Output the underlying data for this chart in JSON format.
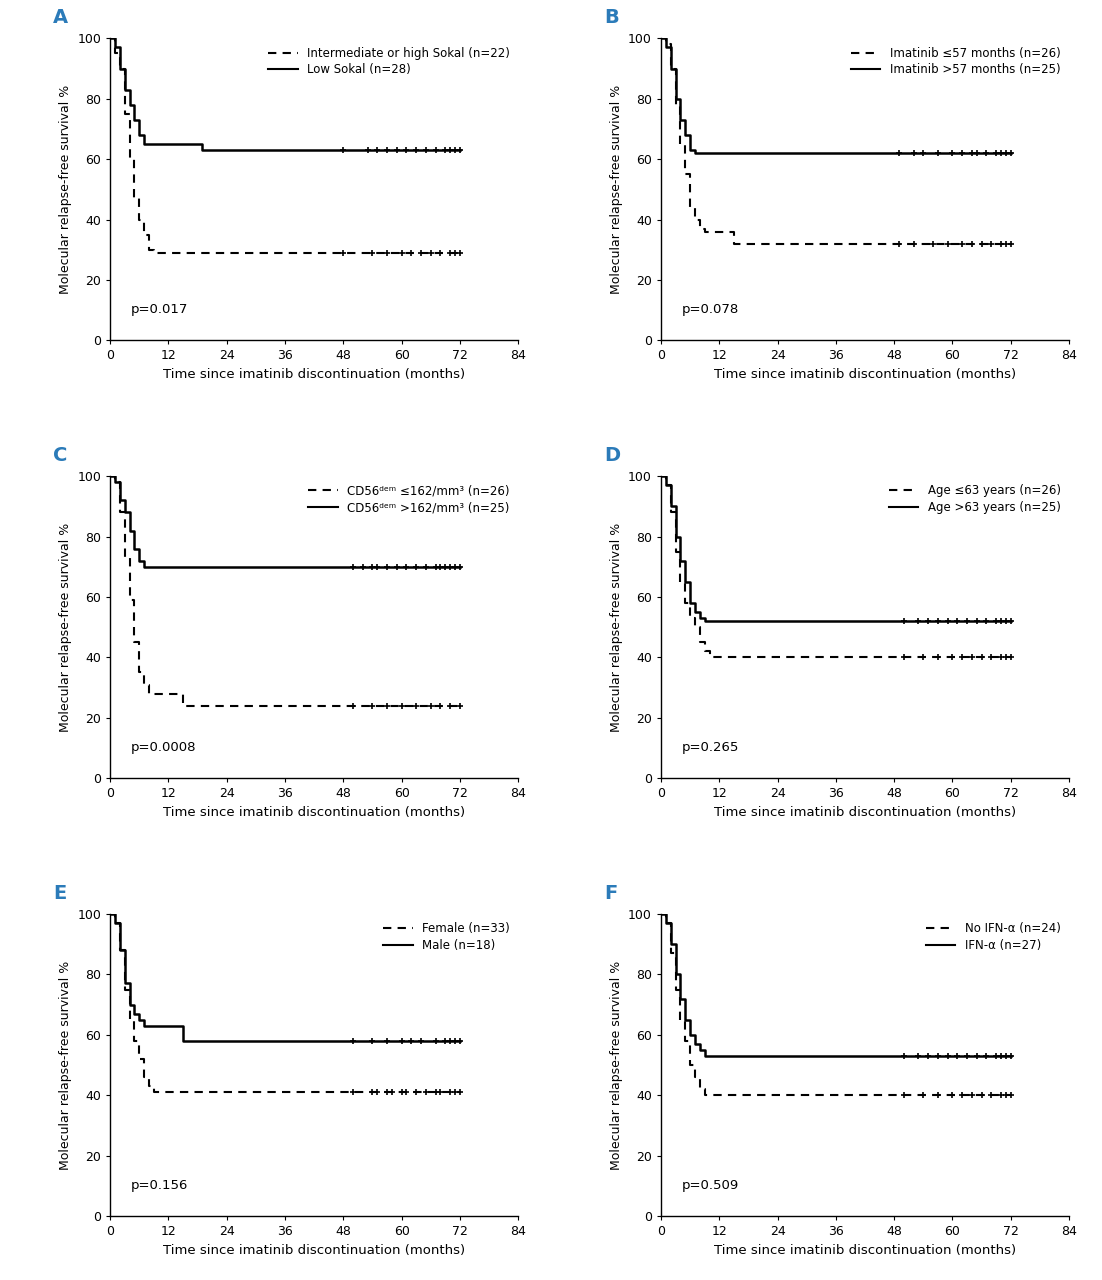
{
  "panels": [
    {
      "label": "A",
      "legend": [
        {
          "text": "Intermediate or high Sokal (n=22)",
          "style": "dashed"
        },
        {
          "text": "Low Sokal (n=28)",
          "style": "solid"
        }
      ],
      "pvalue": "p=0.017",
      "curves": [
        {
          "style": "dashed",
          "steps_x": [
            0,
            1,
            2,
            3,
            4,
            5,
            6,
            7,
            8,
            9,
            10,
            11,
            12,
            72
          ],
          "steps_y": [
            100,
            95,
            90,
            75,
            60,
            47,
            40,
            35,
            30,
            29,
            29,
            29,
            29,
            29
          ],
          "censor_x": [
            48,
            54,
            57,
            60,
            62,
            64,
            66,
            68,
            70,
            71,
            72
          ],
          "censor_y": [
            29,
            29,
            29,
            29,
            29,
            29,
            29,
            29,
            29,
            29,
            29
          ]
        },
        {
          "style": "solid",
          "steps_x": [
            0,
            1,
            2,
            3,
            4,
            5,
            6,
            7,
            8,
            18,
            19,
            72
          ],
          "steps_y": [
            100,
            97,
            90,
            83,
            78,
            73,
            68,
            65,
            65,
            65,
            63,
            63
          ],
          "censor_x": [
            48,
            53,
            55,
            57,
            59,
            61,
            63,
            65,
            67,
            69,
            70,
            71,
            72
          ],
          "censor_y": [
            63,
            63,
            63,
            63,
            63,
            63,
            63,
            63,
            63,
            63,
            63,
            63,
            63
          ]
        }
      ]
    },
    {
      "label": "B",
      "legend": [
        {
          "text": "Imatinib ≤57 months (n=26)",
          "style": "dashed"
        },
        {
          "text": "Imatinib >57 months (n=25)",
          "style": "solid"
        }
      ],
      "pvalue": "p=0.078",
      "curves": [
        {
          "style": "dashed",
          "steps_x": [
            0,
            1,
            2,
            3,
            4,
            5,
            6,
            7,
            8,
            9,
            10,
            14,
            15,
            72
          ],
          "steps_y": [
            100,
            98,
            90,
            78,
            65,
            55,
            44,
            40,
            37,
            36,
            36,
            36,
            32,
            32
          ],
          "censor_x": [
            49,
            52,
            56,
            59,
            62,
            64,
            66,
            68,
            70,
            71,
            72
          ],
          "censor_y": [
            32,
            32,
            32,
            32,
            32,
            32,
            32,
            32,
            32,
            32,
            32
          ]
        },
        {
          "style": "solid",
          "steps_x": [
            0,
            1,
            2,
            3,
            4,
            5,
            6,
            7,
            72
          ],
          "steps_y": [
            100,
            97,
            90,
            80,
            73,
            68,
            63,
            62,
            62
          ],
          "censor_x": [
            49,
            52,
            54,
            57,
            60,
            62,
            64,
            65,
            67,
            69,
            70,
            71,
            72
          ],
          "censor_y": [
            62,
            62,
            62,
            62,
            62,
            62,
            62,
            62,
            62,
            62,
            62,
            62,
            62
          ]
        }
      ]
    },
    {
      "label": "C",
      "legend": [
        {
          "text": "CD56ᵈᵉᵐ ≤162/mm³ (n=26)",
          "style": "dashed"
        },
        {
          "text": "CD56ᵈᵉᵐ >162/mm³ (n=25)",
          "style": "solid"
        }
      ],
      "pvalue": "p=0.0008",
      "curves": [
        {
          "style": "dashed",
          "steps_x": [
            0,
            1,
            2,
            3,
            4,
            5,
            6,
            7,
            8,
            10,
            14,
            15,
            72
          ],
          "steps_y": [
            100,
            98,
            88,
            73,
            59,
            45,
            35,
            31,
            28,
            28,
            28,
            24,
            24
          ],
          "censor_x": [
            50,
            54,
            57,
            60,
            63,
            66,
            68,
            70,
            72
          ],
          "censor_y": [
            24,
            24,
            24,
            24,
            24,
            24,
            24,
            24,
            24
          ]
        },
        {
          "style": "solid",
          "steps_x": [
            0,
            1,
            2,
            3,
            4,
            5,
            6,
            7,
            72
          ],
          "steps_y": [
            100,
            98,
            92,
            88,
            82,
            76,
            72,
            70,
            70
          ],
          "censor_x": [
            50,
            52,
            54,
            55,
            57,
            59,
            61,
            63,
            65,
            67,
            68,
            69,
            70,
            71,
            72
          ],
          "censor_y": [
            70,
            70,
            70,
            70,
            70,
            70,
            70,
            70,
            70,
            70,
            70,
            70,
            70,
            70,
            70
          ]
        }
      ]
    },
    {
      "label": "D",
      "legend": [
        {
          "text": "Age ≤63 years (n=26)",
          "style": "dashed"
        },
        {
          "text": "Age >63 years (n=25)",
          "style": "solid"
        }
      ],
      "pvalue": "p=0.265",
      "curves": [
        {
          "style": "dashed",
          "steps_x": [
            0,
            1,
            2,
            3,
            4,
            5,
            6,
            7,
            8,
            9,
            10,
            11,
            72
          ],
          "steps_y": [
            100,
            97,
            88,
            75,
            65,
            58,
            53,
            50,
            45,
            42,
            40,
            40,
            40
          ],
          "censor_x": [
            50,
            54,
            57,
            60,
            62,
            64,
            66,
            68,
            70,
            71,
            72
          ],
          "censor_y": [
            40,
            40,
            40,
            40,
            40,
            40,
            40,
            40,
            40,
            40,
            40
          ]
        },
        {
          "style": "solid",
          "steps_x": [
            0,
            1,
            2,
            3,
            4,
            5,
            6,
            7,
            8,
            9,
            10,
            72
          ],
          "steps_y": [
            100,
            97,
            90,
            80,
            72,
            65,
            58,
            55,
            53,
            52,
            52,
            52
          ],
          "censor_x": [
            50,
            53,
            55,
            57,
            59,
            61,
            63,
            65,
            67,
            69,
            70,
            71,
            72
          ],
          "censor_y": [
            52,
            52,
            52,
            52,
            52,
            52,
            52,
            52,
            52,
            52,
            52,
            52,
            52
          ]
        }
      ]
    },
    {
      "label": "E",
      "legend": [
        {
          "text": "Female (n=33)",
          "style": "dashed"
        },
        {
          "text": "Male (n=18)",
          "style": "solid"
        }
      ],
      "pvalue": "p=0.156",
      "curves": [
        {
          "style": "dashed",
          "steps_x": [
            0,
            1,
            2,
            3,
            4,
            5,
            6,
            7,
            8,
            9,
            10,
            11,
            72
          ],
          "steps_y": [
            100,
            97,
            88,
            75,
            65,
            58,
            52,
            46,
            43,
            41,
            41,
            41,
            41
          ],
          "censor_x": [
            50,
            54,
            55,
            57,
            58,
            60,
            61,
            63,
            65,
            67,
            68,
            70,
            71,
            72
          ],
          "censor_y": [
            41,
            41,
            41,
            41,
            41,
            41,
            41,
            41,
            41,
            41,
            41,
            41,
            41,
            41
          ]
        },
        {
          "style": "solid",
          "steps_x": [
            0,
            1,
            2,
            3,
            4,
            5,
            6,
            7,
            8,
            14,
            15,
            72
          ],
          "steps_y": [
            100,
            97,
            88,
            77,
            70,
            67,
            65,
            63,
            63,
            63,
            58,
            58
          ],
          "censor_x": [
            50,
            54,
            57,
            60,
            62,
            64,
            67,
            69,
            70,
            71,
            72
          ],
          "censor_y": [
            58,
            58,
            58,
            58,
            58,
            58,
            58,
            58,
            58,
            58,
            58
          ]
        }
      ]
    },
    {
      "label": "F",
      "legend": [
        {
          "text": "No IFN-α (n=24)",
          "style": "dashed"
        },
        {
          "text": "IFN-α (n=27)",
          "style": "solid"
        }
      ],
      "pvalue": "p=0.509",
      "curves": [
        {
          "style": "dashed",
          "steps_x": [
            0,
            1,
            2,
            3,
            4,
            5,
            6,
            7,
            8,
            9,
            10,
            11,
            72
          ],
          "steps_y": [
            100,
            97,
            87,
            75,
            65,
            58,
            50,
            46,
            42,
            40,
            40,
            40,
            40
          ],
          "censor_x": [
            50,
            54,
            57,
            60,
            62,
            64,
            66,
            68,
            70,
            71,
            72
          ],
          "censor_y": [
            40,
            40,
            40,
            40,
            40,
            40,
            40,
            40,
            40,
            40,
            40
          ]
        },
        {
          "style": "solid",
          "steps_x": [
            0,
            1,
            2,
            3,
            4,
            5,
            6,
            7,
            8,
            9,
            10,
            72
          ],
          "steps_y": [
            100,
            97,
            90,
            80,
            72,
            65,
            60,
            57,
            55,
            53,
            53,
            53
          ],
          "censor_x": [
            50,
            53,
            55,
            57,
            59,
            61,
            63,
            65,
            67,
            69,
            70,
            71,
            72
          ],
          "censor_y": [
            53,
            53,
            53,
            53,
            53,
            53,
            53,
            53,
            53,
            53,
            53,
            53,
            53
          ]
        }
      ]
    }
  ],
  "xlabel": "Time since imatinib discontinuation (months)",
  "ylabel": "Molecular relapse-free survival %",
  "xlim": [
    0,
    84
  ],
  "ylim": [
    0,
    100
  ],
  "xticks": [
    0,
    12,
    24,
    36,
    48,
    60,
    72,
    84
  ],
  "yticks": [
    0,
    20,
    40,
    60,
    80,
    100
  ],
  "label_color": "#2b7bb9",
  "line_color": "#000000",
  "bg_color": "#ffffff"
}
